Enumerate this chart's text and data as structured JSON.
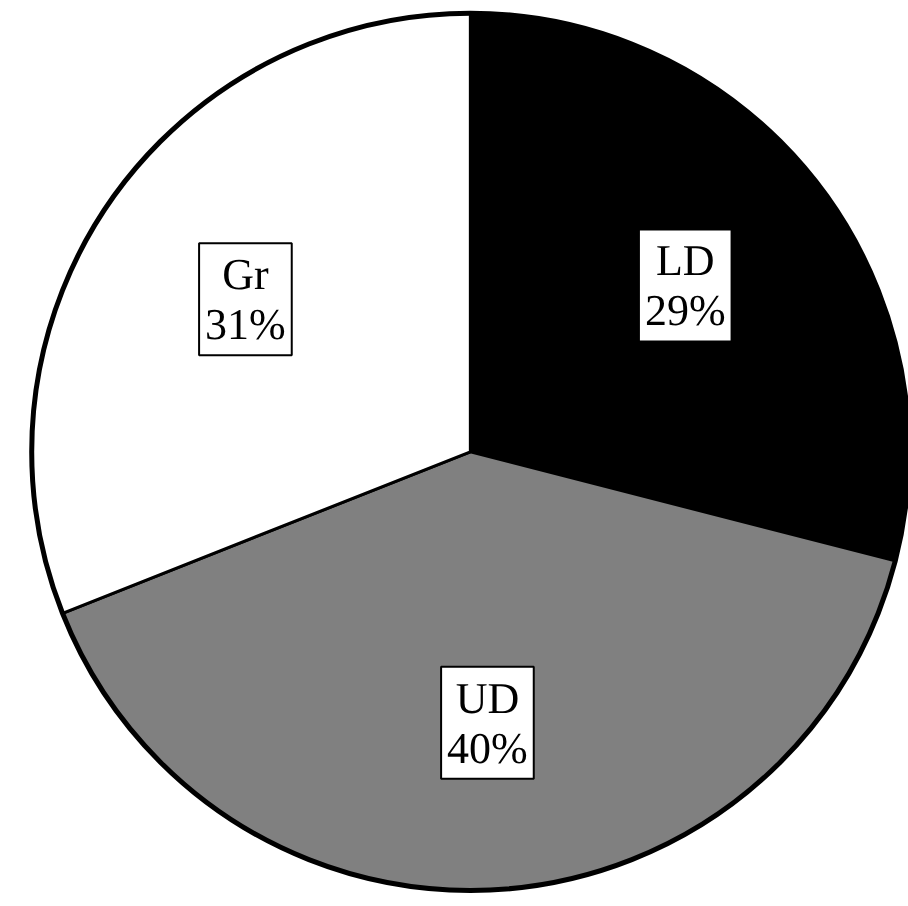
{
  "chart_data": {
    "type": "pie",
    "categories": [
      "LD",
      "UD",
      "Gr"
    ],
    "values": [
      29,
      40,
      31
    ],
    "colors": [
      "#000000",
      "#808080",
      "#ffffff"
    ],
    "value_labels": [
      "29%",
      "40%",
      "31%"
    ]
  }
}
